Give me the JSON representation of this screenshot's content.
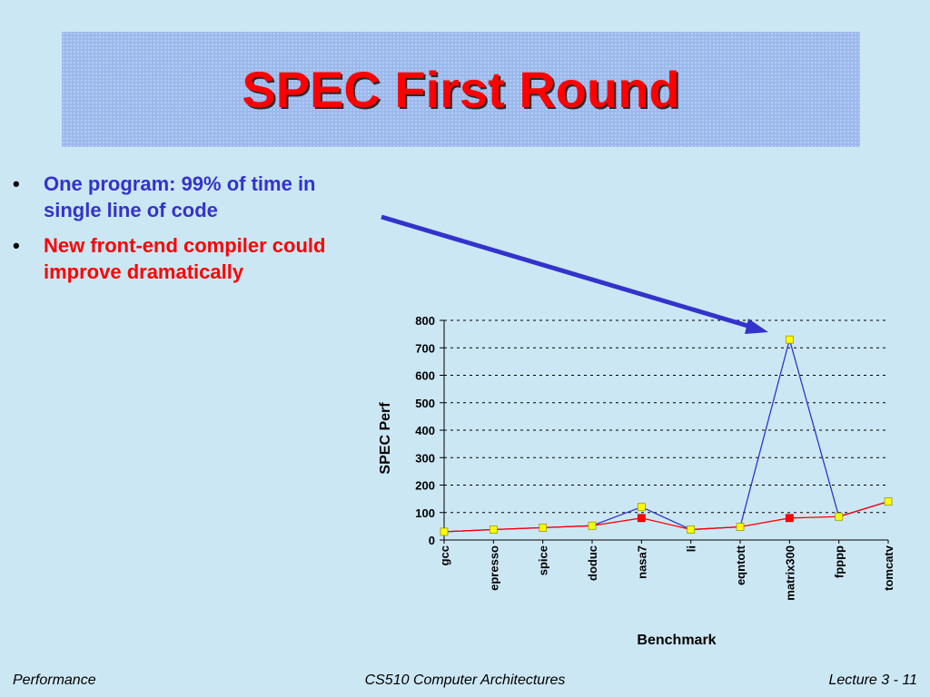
{
  "slide": {
    "title": "SPEC First Round",
    "bullets": [
      {
        "text": "One program: 99% of time in single line of code",
        "color": "#3333cc"
      },
      {
        "text": "New front-end compiler could improve dramatically",
        "color": "#ff0000"
      }
    ],
    "bullet_symbol": "•",
    "arrow_color": "#3333cc"
  },
  "footer": {
    "left": "Performance",
    "center": "CS510 Computer Architectures",
    "right": "Lecture 3 - 11"
  },
  "chart_data": {
    "type": "line",
    "categories": [
      "gcc",
      "epresso",
      "spice",
      "doduc",
      "nasa7",
      "li",
      "eqntott",
      "matrix300",
      "fpppp",
      "tomcatv"
    ],
    "series": [
      {
        "values": [
          30,
          38,
          45,
          52,
          120,
          38,
          48,
          730,
          85,
          140
        ],
        "color": "#3333cc",
        "marker": "#ffff00"
      },
      {
        "values": [
          30,
          38,
          45,
          52,
          80,
          38,
          48,
          80,
          85,
          140
        ],
        "color": "#ff0000",
        "marker": "#ff0000"
      }
    ],
    "xlabel": "Benchmark",
    "ylabel": "SPEC Perf",
    "ylim": [
      0,
      800
    ],
    "yticks": [
      "0",
      "100",
      "200",
      "300",
      "400",
      "500",
      "600",
      "700",
      "800"
    ],
    "grid": true
  }
}
